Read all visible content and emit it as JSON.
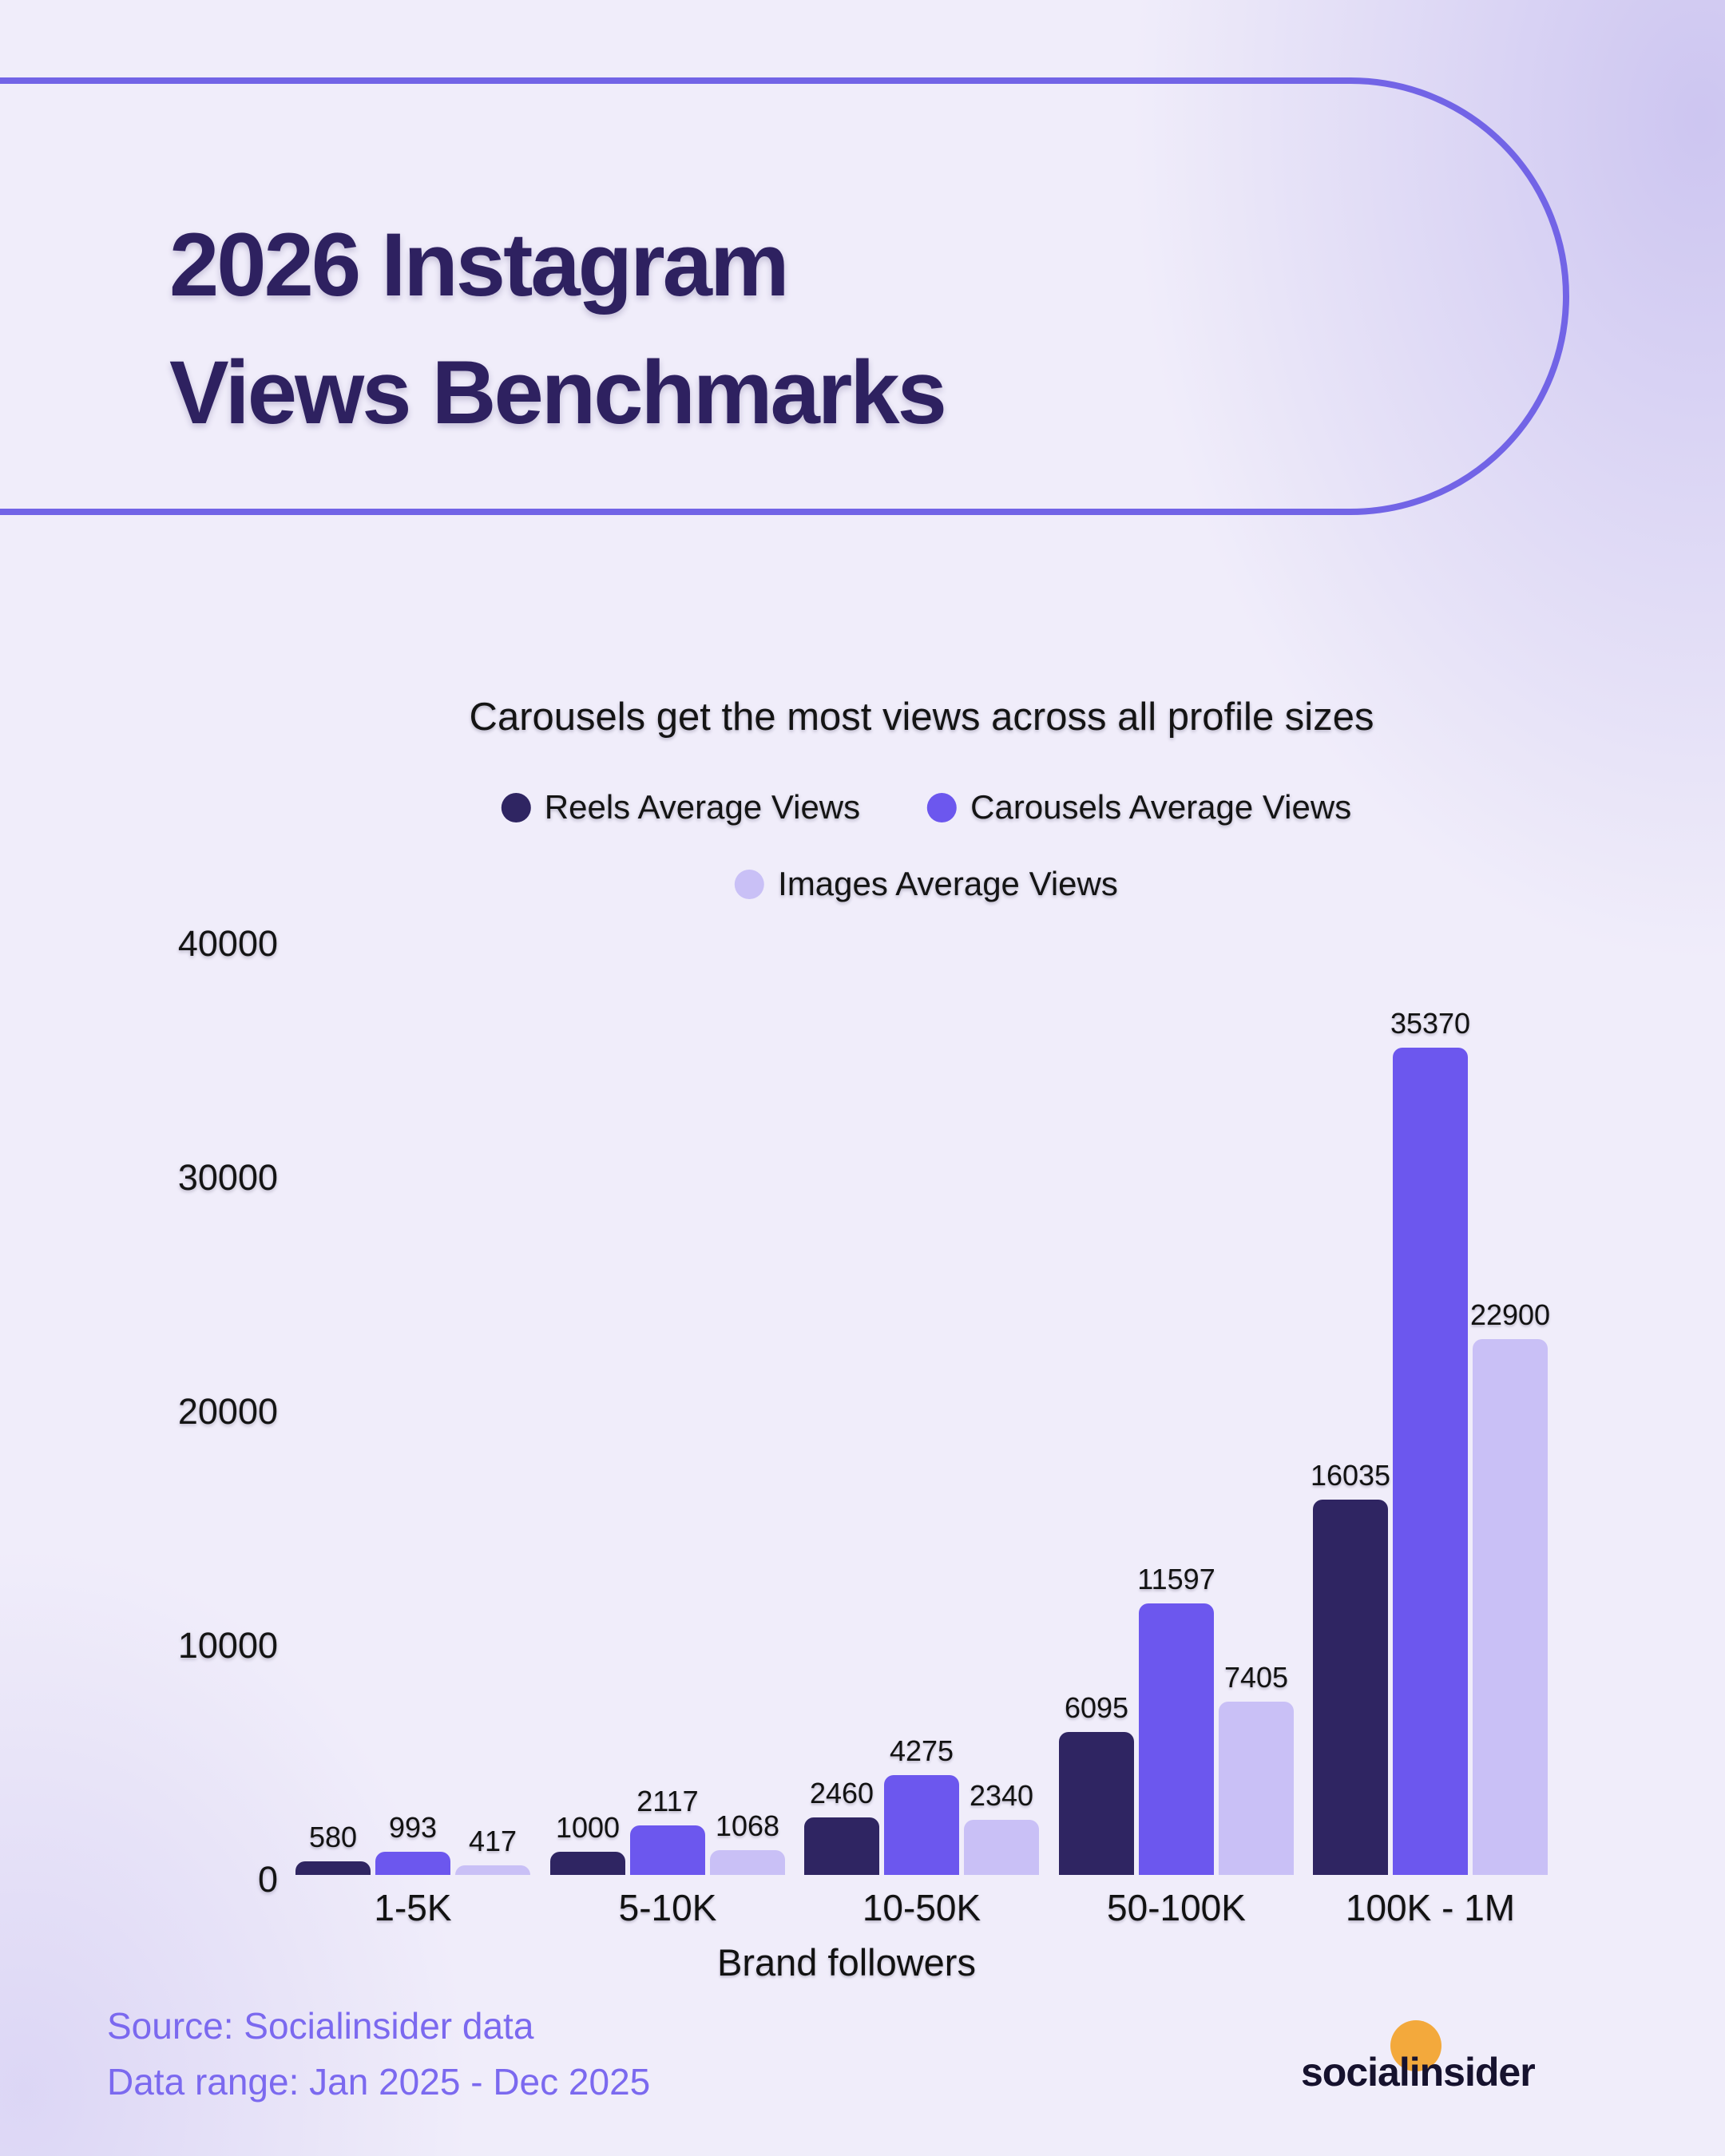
{
  "header": {
    "title_line1": "2026 Instagram",
    "title_line2": "Views Benchmarks"
  },
  "chart_data": {
    "type": "bar",
    "title": "Carousels get the most views across all profile sizes",
    "categories": [
      "1-5K",
      "5-10K",
      "10-50K",
      "50-100K",
      "100K - 1M"
    ],
    "series": [
      {
        "name": "Reels Average Views",
        "color": "#2f2562",
        "values": [
          580,
          1000,
          2460,
          6095,
          16035
        ]
      },
      {
        "name": "Carousels Average Views",
        "color": "#6c57ee",
        "values": [
          993,
          2117,
          4275,
          11597,
          35370
        ]
      },
      {
        "name": "Images Average Views",
        "color": "#c9c0f6",
        "values": [
          417,
          1068,
          2340,
          7405,
          22900
        ]
      }
    ],
    "xlabel": "Brand followers",
    "ylabel": "",
    "ylim": [
      0,
      40000
    ],
    "yticks": [
      0,
      10000,
      20000,
      30000,
      40000
    ],
    "grid": false,
    "legend_position": "top",
    "value_labels": true
  },
  "footer": {
    "source_line1": "Source: Socialinsider data",
    "source_line2": "Data range: Jan 2025 - Dec 2025",
    "logo_text": "socialinsider"
  },
  "colors": {
    "background": "#f0edfa",
    "accent_outline": "#7264e6",
    "title_text": "#2e2160",
    "reels_bar": "#2f2562",
    "carousels_bar": "#6c57ee",
    "images_bar": "#c9c0f6",
    "source_text": "#7b69ef",
    "logo_text": "#16122e",
    "logo_dot_orange": "#f3a93c"
  }
}
